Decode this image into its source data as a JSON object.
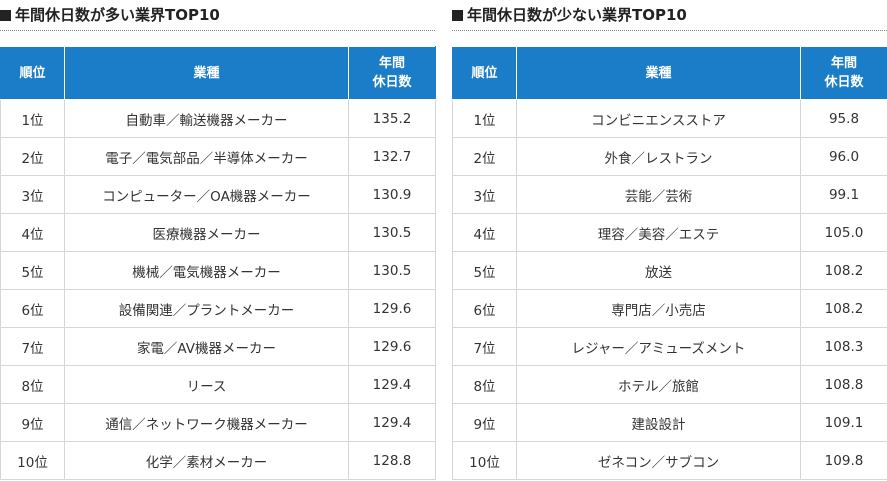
{
  "header": {
    "rank": "順位",
    "industry": "業種",
    "days_line1": "年間",
    "days_line2": "休日数"
  },
  "left": {
    "title": "年間休日数が多い業界TOP10",
    "rows": [
      {
        "rank": "1位",
        "industry": "自動車／輸送機器メーカー",
        "days": "135.2"
      },
      {
        "rank": "2位",
        "industry": "電子／電気部品／半導体メーカー",
        "days": "132.7"
      },
      {
        "rank": "3位",
        "industry": "コンピューター／OA機器メーカー",
        "days": "130.9"
      },
      {
        "rank": "4位",
        "industry": "医療機器メーカー",
        "days": "130.5"
      },
      {
        "rank": "5位",
        "industry": "機械／電気機器メーカー",
        "days": "130.5"
      },
      {
        "rank": "6位",
        "industry": "設備関連／プラントメーカー",
        "days": "129.6"
      },
      {
        "rank": "7位",
        "industry": "家電／AV機器メーカー",
        "days": "129.6"
      },
      {
        "rank": "8位",
        "industry": "リース",
        "days": "129.4"
      },
      {
        "rank": "9位",
        "industry": "通信／ネットワーク機器メーカー",
        "days": "129.4"
      },
      {
        "rank": "10位",
        "industry": "化学／素材メーカー",
        "days": "128.8"
      }
    ]
  },
  "right": {
    "title": "年間休日数が少ない業界TOP10",
    "rows": [
      {
        "rank": "1位",
        "industry": "コンビニエンスストア",
        "days": "95.8"
      },
      {
        "rank": "2位",
        "industry": "外食／レストラン",
        "days": "96.0"
      },
      {
        "rank": "3位",
        "industry": "芸能／芸術",
        "days": "99.1"
      },
      {
        "rank": "4位",
        "industry": "理容／美容／エステ",
        "days": "105.0"
      },
      {
        "rank": "5位",
        "industry": "放送",
        "days": "108.2"
      },
      {
        "rank": "6位",
        "industry": "専門店／小売店",
        "days": "108.2"
      },
      {
        "rank": "7位",
        "industry": "レジャー／アミューズメント",
        "days": "108.3"
      },
      {
        "rank": "8位",
        "industry": "ホテル／旅館",
        "days": "108.8"
      },
      {
        "rank": "9位",
        "industry": "建設設計",
        "days": "109.1"
      },
      {
        "rank": "10位",
        "industry": "ゼネコン／サブコン",
        "days": "109.8"
      }
    ]
  },
  "colors": {
    "header_bg": "#1b7cc8",
    "header_text": "#ffffff",
    "border": "#d6d6d6"
  }
}
